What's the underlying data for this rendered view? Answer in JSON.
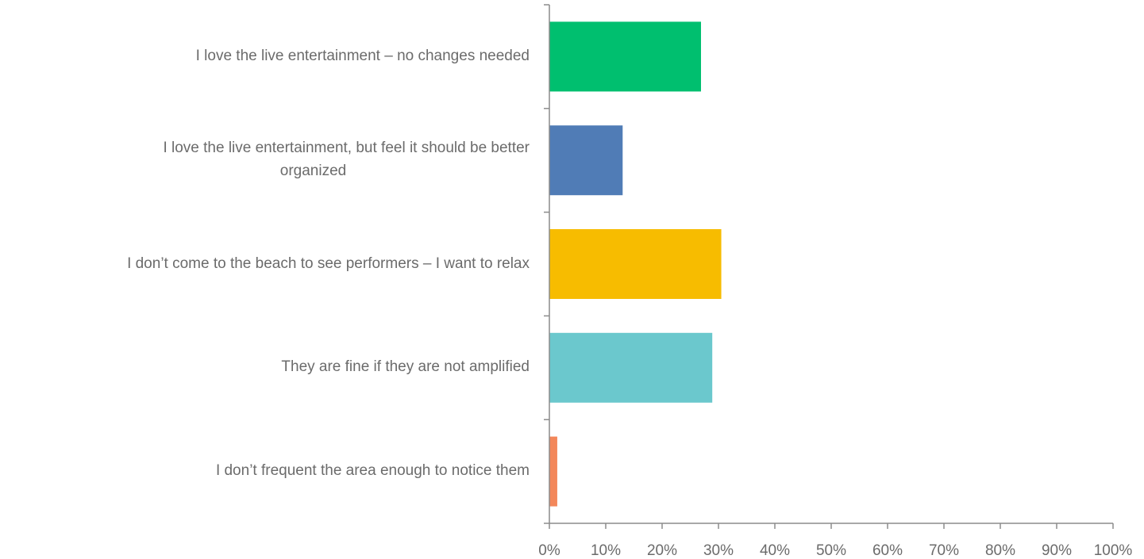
{
  "chart_data": {
    "type": "bar",
    "orientation": "horizontal",
    "categories": [
      "I love the live entertainment – no changes needed",
      "I love the live entertainment, but feel it should be better organized",
      "I don’t come to the beach to see performers – I want to relax",
      "They are fine if they are not amplified",
      "I don’t frequent the area enough to notice them"
    ],
    "values": [
      26.9,
      13.0,
      30.5,
      28.9,
      1.4
    ],
    "colors": [
      "#00bf6f",
      "#507cb6",
      "#f7bc00",
      "#6bc8cd",
      "#f3875a"
    ],
    "xlim": [
      0,
      100
    ],
    "x_ticks": [
      "0%",
      "10%",
      "20%",
      "30%",
      "40%",
      "50%",
      "60%",
      "70%",
      "80%",
      "90%",
      "100%"
    ],
    "grid": false,
    "legend": "none"
  }
}
